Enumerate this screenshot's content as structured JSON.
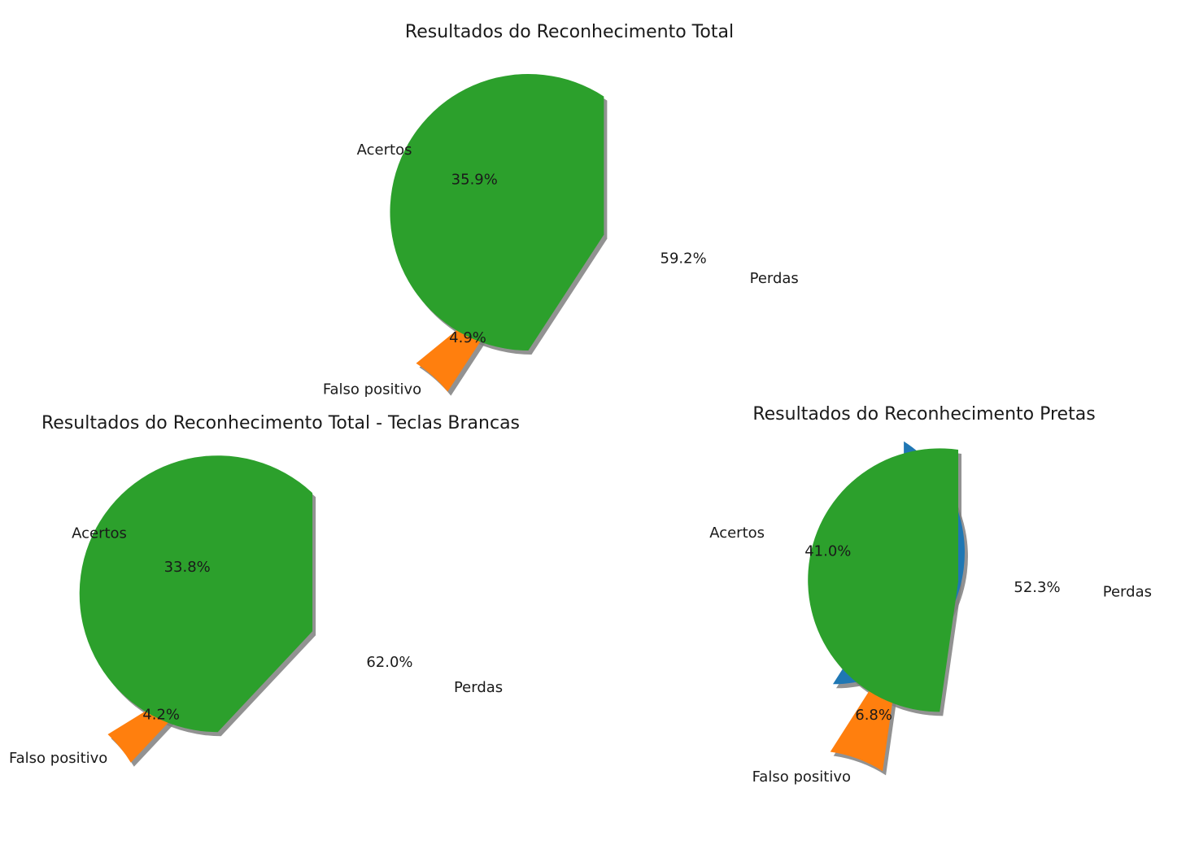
{
  "chart_data": [
    {
      "type": "pie",
      "title": "Resultados do Reconhecimento Total",
      "labels": [
        "Acertos",
        "Falso positivo",
        "Perdas"
      ],
      "values": [
        35.9,
        4.9,
        59.2
      ],
      "value_labels": [
        "35.9%",
        "4.9%",
        "59.2%"
      ],
      "colors": [
        "#1f77b4",
        "#ff7f0e",
        "#2ca02c"
      ],
      "exploded": true,
      "shadow": true,
      "start_angle": 90
    },
    {
      "type": "pie",
      "title": "Resultados do Reconhecimento Total - Teclas Brancas",
      "labels": [
        "Acertos",
        "Falso positivo",
        "Perdas"
      ],
      "values": [
        33.8,
        4.2,
        62.0
      ],
      "value_labels": [
        "33.8%",
        "4.2%",
        "62.0%"
      ],
      "colors": [
        "#1f77b4",
        "#ff7f0e",
        "#2ca02c"
      ],
      "exploded": true,
      "shadow": true,
      "start_angle": 90
    },
    {
      "type": "pie",
      "title": "Resultados do Reconhecimento Pretas",
      "labels": [
        "Acertos",
        "Falso positivo",
        "Perdas"
      ],
      "values": [
        41.0,
        6.8,
        52.3
      ],
      "value_labels": [
        "41.0%",
        "6.8%",
        "52.3%"
      ],
      "colors": [
        "#1f77b4",
        "#ff7f0e",
        "#2ca02c"
      ],
      "exploded": true,
      "shadow": true,
      "start_angle": 90
    }
  ]
}
